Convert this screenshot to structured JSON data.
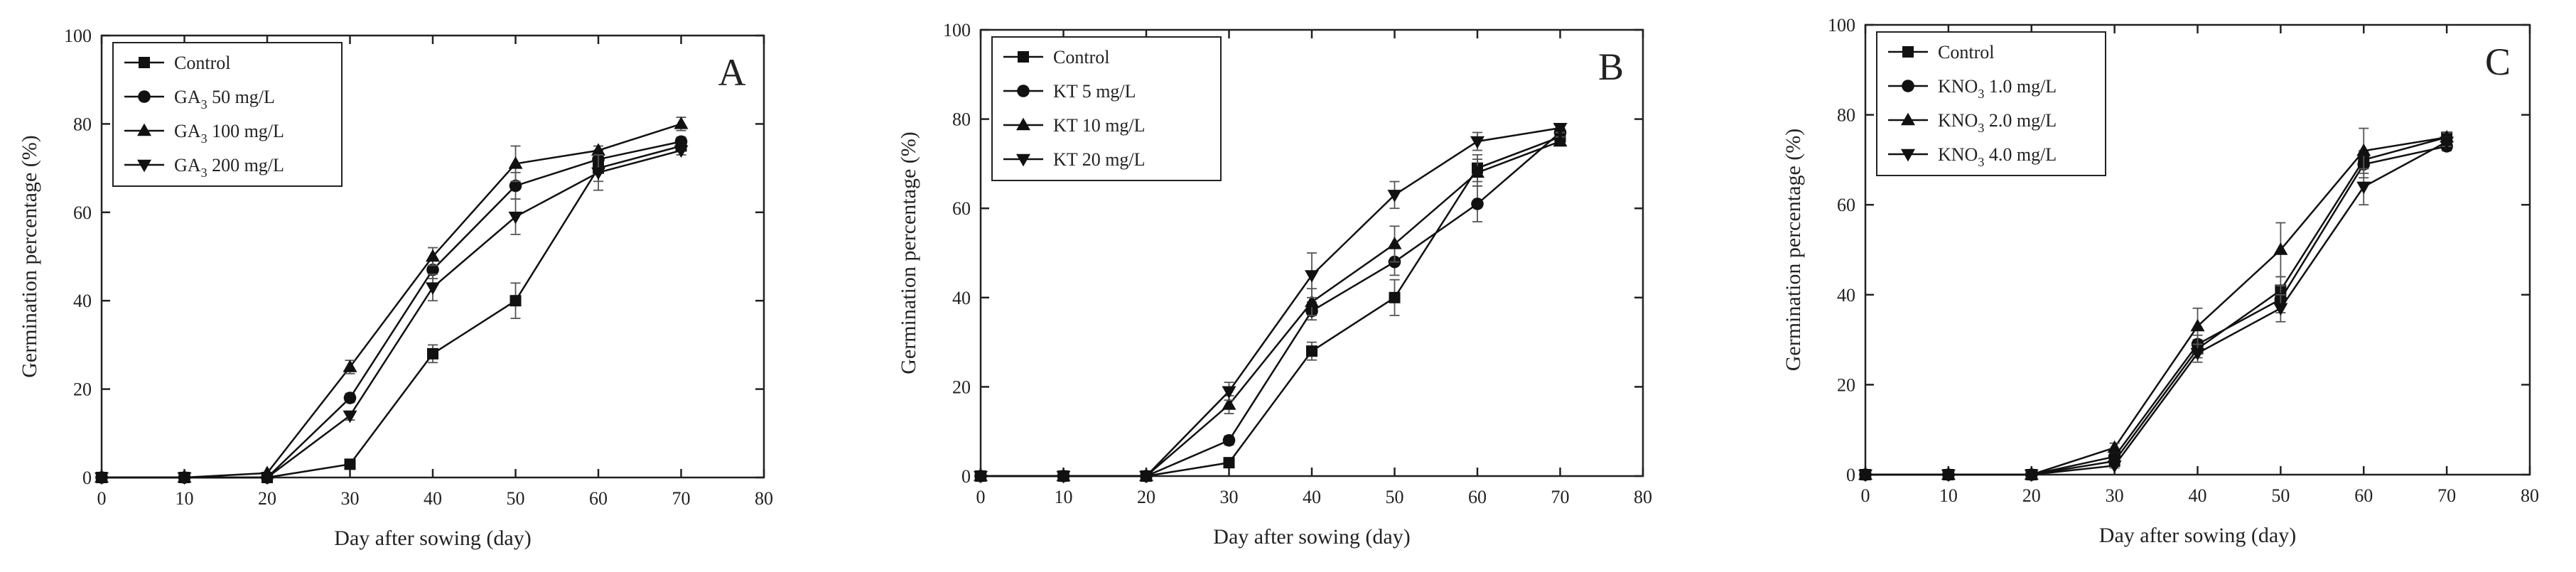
{
  "chart_data": [
    {
      "type": "line",
      "panel_label": "A",
      "xlabel": "Day after sowing (day)",
      "ylabel": "Germination percentage (%)",
      "xlim": [
        0,
        80
      ],
      "ylim": [
        0,
        100
      ],
      "xticks": [
        0,
        10,
        20,
        30,
        40,
        50,
        60,
        70,
        80
      ],
      "yticks": [
        0,
        20,
        40,
        60,
        80,
        100
      ],
      "x": [
        0,
        10,
        20,
        30,
        40,
        50,
        60,
        70
      ],
      "series": [
        {
          "name": "Control",
          "prefix": "Control",
          "sub": "",
          "suffix": "",
          "marker": "square",
          "values": [
            0,
            0,
            0,
            3,
            28,
            40,
            70,
            75
          ],
          "errors": [
            0,
            0,
            0,
            0.5,
            2,
            4,
            3,
            1
          ]
        },
        {
          "name": "GA3 50 mg/L",
          "prefix": "GA",
          "sub": "3",
          "suffix": " 50 mg/L",
          "marker": "circle",
          "values": [
            0,
            0,
            0,
            18,
            47,
            66,
            72,
            76
          ],
          "errors": [
            0,
            0,
            0,
            1,
            2,
            3,
            2,
            1
          ]
        },
        {
          "name": "GA3 100 mg/L",
          "prefix": "GA",
          "sub": "3",
          "suffix": " 100 mg/L",
          "marker": "triangle-up",
          "values": [
            0,
            0,
            1,
            25,
            50,
            71,
            74,
            80
          ],
          "errors": [
            0,
            0,
            0,
            1.5,
            2,
            4,
            1,
            1.5
          ]
        },
        {
          "name": "GA3 200 mg/L",
          "prefix": "GA",
          "sub": "3",
          "suffix": " 200 mg/L",
          "marker": "triangle-down",
          "values": [
            0,
            0,
            0,
            14,
            43,
            59,
            69,
            74
          ],
          "errors": [
            0,
            0,
            0,
            1,
            3,
            4,
            4,
            1
          ]
        }
      ]
    },
    {
      "type": "line",
      "panel_label": "B",
      "xlabel": "Day after sowing (day)",
      "ylabel": "Germination percentage (%)",
      "xlim": [
        0,
        80
      ],
      "ylim": [
        0,
        100
      ],
      "xticks": [
        0,
        10,
        20,
        30,
        40,
        50,
        60,
        70,
        80
      ],
      "yticks": [
        0,
        20,
        40,
        60,
        80,
        100
      ],
      "x": [
        0,
        10,
        20,
        30,
        40,
        50,
        60,
        70
      ],
      "series": [
        {
          "name": "Control",
          "prefix": "Control",
          "sub": "",
          "suffix": "",
          "marker": "square",
          "values": [
            0,
            0,
            0,
            3,
            28,
            40,
            69,
            76
          ],
          "errors": [
            0,
            0,
            0,
            0.5,
            2,
            4,
            3,
            1
          ]
        },
        {
          "name": "KT 5 mg/L",
          "prefix": "KT  5 mg/L",
          "sub": "",
          "suffix": "",
          "marker": "circle",
          "values": [
            0,
            0,
            0,
            8,
            37,
            48,
            61,
            77
          ],
          "errors": [
            0,
            0,
            0,
            1,
            2,
            3,
            4,
            1
          ]
        },
        {
          "name": "KT 10 mg/L",
          "prefix": "KT  10 mg/L",
          "sub": "",
          "suffix": "",
          "marker": "triangle-up",
          "values": [
            0,
            0,
            0,
            16,
            39,
            52,
            68,
            75
          ],
          "errors": [
            0,
            0,
            0,
            2,
            3,
            4,
            3,
            1
          ]
        },
        {
          "name": "KT 20 mg/L",
          "prefix": "KT  20 mg/L",
          "sub": "",
          "suffix": "",
          "marker": "triangle-down",
          "values": [
            0,
            0,
            0,
            19,
            45,
            63,
            75,
            78
          ],
          "errors": [
            0,
            0,
            0,
            2,
            5,
            3,
            2,
            1
          ]
        }
      ]
    },
    {
      "type": "line",
      "panel_label": "C",
      "xlabel": "Day after sowing (day)",
      "ylabel": "Germination percentage (%)",
      "xlim": [
        0,
        80
      ],
      "ylim": [
        0,
        100
      ],
      "xticks": [
        0,
        10,
        20,
        30,
        40,
        50,
        60,
        70,
        80
      ],
      "yticks": [
        0,
        20,
        40,
        60,
        80,
        100
      ],
      "x": [
        0,
        10,
        20,
        30,
        40,
        50,
        60,
        70
      ],
      "series": [
        {
          "name": "Control",
          "prefix": "Control",
          "sub": "",
          "suffix": "",
          "marker": "square",
          "values": [
            0,
            0,
            0,
            3,
            28,
            41,
            70,
            75
          ],
          "errors": [
            0,
            0,
            0,
            0.5,
            2,
            3,
            2,
            1
          ]
        },
        {
          "name": "KNO3 1.0 mg/L",
          "prefix": "KNO",
          "sub": "3",
          "suffix": " 1.0 mg/L",
          "marker": "circle",
          "values": [
            0,
            0,
            0,
            4,
            29,
            39,
            69,
            73
          ],
          "errors": [
            0,
            0,
            0,
            1,
            2,
            3,
            3,
            1
          ]
        },
        {
          "name": "KNO3 2.0 mg/L",
          "prefix": "KNO",
          "sub": "3",
          "suffix": " 2.0 mg/L",
          "marker": "triangle-up",
          "values": [
            0,
            0,
            0,
            6,
            33,
            50,
            72,
            75
          ],
          "errors": [
            0,
            0,
            0,
            1,
            4,
            6,
            5,
            1
          ]
        },
        {
          "name": "KNO3 4.0 mg/L",
          "prefix": "KNO",
          "sub": "3",
          "suffix": " 4.0 mg/L",
          "marker": "triangle-down",
          "values": [
            0,
            0,
            0,
            2,
            27,
            37,
            64,
            74
          ],
          "errors": [
            0,
            0,
            0,
            0.5,
            2,
            3,
            4,
            1
          ]
        }
      ]
    }
  ]
}
